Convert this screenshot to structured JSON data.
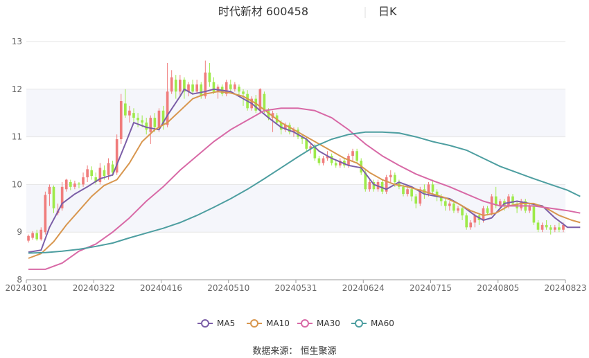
{
  "chart_data": {
    "type": "candlestick",
    "title": "时代新材 600458",
    "period": "日K",
    "ylim": [
      8,
      13
    ],
    "yticks": [
      8,
      9,
      10,
      11,
      12,
      13
    ],
    "xticks": [
      "20240301",
      "20240322",
      "20240416",
      "20240510",
      "20240531",
      "20240624",
      "20240715",
      "20240805",
      "20240823"
    ],
    "colors": {
      "up": "#f07c7c",
      "down": "#9eea4a",
      "ma5": "#7b5ea7",
      "ma10": "#d8964e",
      "ma30": "#d869a6",
      "ma60": "#4d9ea0"
    },
    "candles": [
      [
        8.82,
        8.92,
        8.95,
        8.78
      ],
      [
        8.88,
        8.98,
        9.02,
        8.84
      ],
      [
        8.98,
        8.85,
        9.05,
        8.82
      ],
      [
        8.85,
        9.05,
        9.1,
        8.82
      ],
      [
        9.0,
        9.78,
        9.85,
        8.95
      ],
      [
        9.8,
        9.95,
        10.0,
        9.55
      ],
      [
        9.95,
        9.5,
        9.98,
        9.4
      ],
      [
        9.4,
        9.45,
        9.6,
        9.35
      ],
      [
        9.5,
        9.95,
        10.05,
        9.45
      ],
      [
        9.9,
        10.1,
        10.12,
        9.85
      ],
      [
        10.05,
        9.95,
        10.1,
        9.88
      ],
      [
        9.95,
        10.02,
        10.08,
        9.9
      ],
      [
        10.02,
        10.0,
        10.05,
        9.92
      ],
      [
        10.0,
        10.15,
        10.25,
        9.95
      ],
      [
        10.15,
        10.32,
        10.4,
        10.05
      ],
      [
        10.3,
        10.18,
        10.38,
        10.1
      ],
      [
        10.15,
        10.05,
        10.25,
        10.0
      ],
      [
        10.05,
        10.35,
        10.45,
        10.0
      ],
      [
        10.3,
        10.18,
        10.4,
        10.1
      ],
      [
        10.2,
        10.45,
        10.55,
        10.1
      ],
      [
        10.42,
        10.25,
        10.5,
        10.18
      ],
      [
        10.25,
        10.95,
        11.05,
        10.2
      ],
      [
        10.95,
        11.75,
        11.9,
        10.85
      ],
      [
        11.7,
        11.45,
        12.0,
        11.4
      ],
      [
        11.45,
        11.55,
        11.65,
        11.3
      ],
      [
        11.5,
        11.4,
        11.6,
        11.3
      ],
      [
        11.4,
        11.35,
        11.5,
        11.2
      ],
      [
        11.35,
        11.3,
        11.45,
        11.2
      ],
      [
        11.3,
        11.15,
        11.4,
        11.05
      ],
      [
        11.1,
        11.4,
        11.45,
        10.85
      ],
      [
        11.4,
        11.2,
        11.5,
        11.1
      ],
      [
        11.2,
        11.55,
        11.6,
        11.1
      ],
      [
        11.55,
        11.25,
        11.65,
        11.15
      ],
      [
        11.25,
        11.95,
        12.55,
        11.2
      ],
      [
        11.95,
        12.25,
        12.4,
        11.9
      ],
      [
        12.2,
        11.95,
        12.3,
        11.8
      ],
      [
        11.95,
        12.2,
        12.3,
        11.85
      ],
      [
        12.2,
        11.95,
        12.25,
        11.8
      ],
      [
        11.95,
        12.1,
        12.15,
        11.85
      ],
      [
        12.1,
        11.95,
        12.2,
        11.9
      ],
      [
        11.95,
        12.1,
        12.2,
        11.9
      ],
      [
        12.1,
        11.85,
        12.15,
        11.8
      ],
      [
        11.85,
        12.35,
        12.6,
        11.8
      ],
      [
        12.35,
        12.15,
        12.55,
        12.05
      ],
      [
        12.15,
        11.95,
        12.25,
        11.9
      ],
      [
        11.95,
        12.05,
        12.1,
        11.8
      ],
      [
        12.05,
        11.9,
        12.1,
        11.85
      ],
      [
        11.9,
        12.15,
        12.2,
        11.85
      ],
      [
        12.1,
        12.0,
        12.2,
        11.95
      ],
      [
        12.0,
        12.1,
        12.15,
        11.95
      ],
      [
        12.05,
        11.95,
        12.1,
        11.85
      ],
      [
        11.95,
        11.9,
        12.0,
        11.65
      ],
      [
        11.9,
        11.6,
        11.98,
        11.55
      ],
      [
        11.6,
        11.8,
        11.85,
        11.55
      ],
      [
        11.8,
        11.55,
        11.88,
        11.5
      ],
      [
        11.55,
        12.0,
        12.02,
        11.5
      ],
      [
        11.9,
        11.55,
        11.95,
        11.5
      ],
      [
        11.55,
        11.4,
        11.6,
        11.35
      ],
      [
        11.4,
        11.5,
        11.55,
        11.1
      ],
      [
        11.45,
        11.3,
        11.5,
        11.25
      ],
      [
        11.3,
        11.15,
        11.35,
        11.05
      ],
      [
        11.15,
        11.25,
        11.3,
        11.1
      ],
      [
        11.25,
        11.1,
        11.3,
        11.05
      ],
      [
        11.1,
        11.15,
        11.2,
        11.0
      ],
      [
        11.15,
        11.0,
        11.2,
        10.95
      ],
      [
        11.0,
        10.95,
        11.05,
        10.85
      ],
      [
        10.95,
        10.75,
        11.0,
        10.7
      ],
      [
        10.75,
        10.8,
        10.85,
        10.65
      ],
      [
        10.8,
        10.55,
        10.85,
        10.5
      ],
      [
        10.55,
        10.45,
        10.6,
        10.4
      ],
      [
        10.45,
        10.55,
        10.6,
        10.4
      ],
      [
        10.55,
        10.6,
        10.7,
        10.5
      ],
      [
        10.6,
        10.45,
        10.65,
        10.4
      ],
      [
        10.45,
        10.4,
        10.5,
        10.35
      ],
      [
        10.4,
        10.5,
        10.55,
        10.35
      ],
      [
        10.5,
        10.4,
        10.55,
        10.35
      ],
      [
        10.4,
        10.6,
        10.65,
        10.35
      ],
      [
        10.6,
        10.7,
        10.75,
        10.5
      ],
      [
        10.7,
        10.5,
        10.75,
        10.45
      ],
      [
        10.5,
        10.25,
        10.55,
        10.2
      ],
      [
        10.25,
        9.9,
        10.3,
        9.85
      ],
      [
        9.9,
        10.05,
        10.1,
        9.85
      ],
      [
        10.05,
        9.9,
        10.1,
        9.85
      ],
      [
        9.9,
        10.05,
        10.1,
        9.85
      ],
      [
        10.05,
        9.85,
        10.1,
        9.8
      ],
      [
        9.85,
        10.15,
        10.2,
        9.8
      ],
      [
        10.15,
        10.2,
        10.3,
        10.05
      ],
      [
        10.2,
        10.05,
        10.25,
        9.95
      ],
      [
        10.05,
        9.95,
        10.1,
        9.9
      ],
      [
        9.95,
        9.8,
        10.0,
        9.75
      ],
      [
        9.8,
        9.9,
        9.95,
        9.75
      ],
      [
        9.9,
        9.75,
        9.95,
        9.65
      ],
      [
        9.75,
        9.6,
        9.8,
        9.5
      ],
      [
        9.6,
        9.9,
        9.95,
        9.55
      ],
      [
        9.9,
        9.8,
        10.0,
        9.7
      ],
      [
        9.8,
        10.0,
        10.05,
        9.75
      ],
      [
        10.0,
        9.85,
        10.1,
        9.8
      ],
      [
        9.85,
        9.75,
        9.9,
        9.65
      ],
      [
        9.75,
        9.65,
        9.8,
        9.55
      ],
      [
        9.65,
        9.55,
        9.7,
        9.45
      ],
      [
        9.55,
        9.6,
        9.65,
        9.45
      ],
      [
        9.6,
        9.45,
        9.65,
        9.4
      ],
      [
        9.45,
        9.5,
        9.55,
        9.4
      ],
      [
        9.5,
        9.35,
        9.55,
        9.25
      ],
      [
        9.35,
        9.1,
        9.4,
        9.05
      ],
      [
        9.1,
        9.2,
        9.25,
        9.05
      ],
      [
        9.2,
        9.35,
        9.4,
        9.1
      ],
      [
        9.35,
        9.25,
        9.4,
        9.15
      ],
      [
        9.25,
        9.5,
        9.55,
        9.2
      ],
      [
        9.5,
        9.4,
        9.55,
        9.35
      ],
      [
        9.4,
        9.75,
        9.8,
        9.35
      ],
      [
        9.75,
        9.55,
        9.95,
        9.5
      ],
      [
        9.55,
        9.65,
        9.7,
        9.5
      ],
      [
        9.65,
        9.55,
        9.7,
        9.45
      ],
      [
        9.55,
        9.75,
        9.8,
        9.5
      ],
      [
        9.75,
        9.6,
        9.8,
        9.55
      ],
      [
        9.6,
        9.5,
        9.65,
        9.4
      ],
      [
        9.5,
        9.65,
        9.7,
        9.45
      ],
      [
        9.65,
        9.45,
        9.7,
        9.4
      ],
      [
        9.45,
        9.55,
        9.6,
        9.4
      ],
      [
        9.55,
        9.2,
        9.6,
        9.15
      ],
      [
        9.2,
        9.05,
        9.25,
        9.0
      ],
      [
        9.05,
        9.15,
        9.2,
        9.0
      ],
      [
        9.15,
        9.1,
        9.25,
        9.05
      ],
      [
        9.1,
        9.05,
        9.15,
        8.95
      ],
      [
        9.05,
        9.1,
        9.15,
        9.0
      ],
      [
        9.1,
        9.05,
        9.2,
        9.0
      ],
      [
        9.05,
        9.15,
        9.2,
        9.0
      ]
    ],
    "series": [
      {
        "name": "MA5",
        "color": "#7b5ea7",
        "values": [
          [
            0,
            8.58
          ],
          [
            3,
            8.62
          ],
          [
            5,
            9.1
          ],
          [
            8,
            9.6
          ],
          [
            11,
            9.8
          ],
          [
            14,
            9.95
          ],
          [
            17,
            10.12
          ],
          [
            20,
            10.2
          ],
          [
            23,
            10.85
          ],
          [
            25,
            11.3
          ],
          [
            28,
            11.2
          ],
          [
            31,
            11.15
          ],
          [
            33,
            11.45
          ],
          [
            36,
            11.85
          ],
          [
            37,
            12.0
          ],
          [
            39,
            11.9
          ],
          [
            42,
            11.95
          ],
          [
            44,
            12.0
          ],
          [
            48,
            11.95
          ],
          [
            50,
            11.85
          ],
          [
            53,
            11.7
          ],
          [
            57,
            11.4
          ],
          [
            60,
            11.2
          ],
          [
            63,
            11.1
          ],
          [
            66,
            10.95
          ],
          [
            69,
            10.7
          ],
          [
            72,
            10.55
          ],
          [
            76,
            10.4
          ],
          [
            79,
            10.35
          ],
          [
            82,
            10.0
          ],
          [
            85,
            9.9
          ],
          [
            88,
            10.05
          ],
          [
            91,
            9.95
          ],
          [
            94,
            9.8
          ],
          [
            97,
            9.75
          ],
          [
            100,
            9.7
          ],
          [
            103,
            9.55
          ],
          [
            106,
            9.35
          ],
          [
            108,
            9.25
          ],
          [
            110,
            9.3
          ],
          [
            113,
            9.6
          ],
          [
            116,
            9.65
          ],
          [
            119,
            9.6
          ],
          [
            122,
            9.55
          ],
          [
            125,
            9.3
          ],
          [
            128,
            9.1
          ],
          [
            131,
            9.1
          ]
        ]
      },
      {
        "name": "MA10",
        "color": "#d8964e",
        "values": [
          [
            0,
            8.45
          ],
          [
            3,
            8.55
          ],
          [
            6,
            8.8
          ],
          [
            9,
            9.15
          ],
          [
            12,
            9.45
          ],
          [
            15,
            9.75
          ],
          [
            18,
            9.98
          ],
          [
            21,
            10.1
          ],
          [
            24,
            10.45
          ],
          [
            27,
            10.9
          ],
          [
            30,
            11.15
          ],
          [
            33,
            11.3
          ],
          [
            36,
            11.55
          ],
          [
            39,
            11.8
          ],
          [
            42,
            11.9
          ],
          [
            45,
            11.95
          ],
          [
            48,
            11.92
          ],
          [
            51,
            11.85
          ],
          [
            54,
            11.7
          ],
          [
            57,
            11.5
          ],
          [
            60,
            11.3
          ],
          [
            63,
            11.15
          ],
          [
            66,
            11.0
          ],
          [
            69,
            10.85
          ],
          [
            72,
            10.7
          ],
          [
            75,
            10.55
          ],
          [
            78,
            10.45
          ],
          [
            81,
            10.25
          ],
          [
            84,
            10.1
          ],
          [
            87,
            10.0
          ],
          [
            90,
            9.95
          ],
          [
            93,
            9.88
          ],
          [
            96,
            9.8
          ],
          [
            99,
            9.72
          ],
          [
            102,
            9.6
          ],
          [
            105,
            9.45
          ],
          [
            108,
            9.35
          ],
          [
            111,
            9.4
          ],
          [
            114,
            9.55
          ],
          [
            117,
            9.6
          ],
          [
            120,
            9.6
          ],
          [
            123,
            9.5
          ],
          [
            126,
            9.35
          ],
          [
            129,
            9.25
          ],
          [
            131,
            9.2
          ]
        ]
      },
      {
        "name": "MA30",
        "color": "#d869a6",
        "values": [
          [
            0,
            8.22
          ],
          [
            4,
            8.22
          ],
          [
            8,
            8.35
          ],
          [
            12,
            8.6
          ],
          [
            16,
            8.75
          ],
          [
            20,
            9.0
          ],
          [
            24,
            9.3
          ],
          [
            28,
            9.65
          ],
          [
            32,
            9.95
          ],
          [
            36,
            10.3
          ],
          [
            40,
            10.6
          ],
          [
            44,
            10.9
          ],
          [
            48,
            11.15
          ],
          [
            52,
            11.35
          ],
          [
            56,
            11.55
          ],
          [
            60,
            11.6
          ],
          [
            64,
            11.6
          ],
          [
            68,
            11.55
          ],
          [
            72,
            11.4
          ],
          [
            76,
            11.15
          ],
          [
            80,
            10.85
          ],
          [
            84,
            10.6
          ],
          [
            88,
            10.4
          ],
          [
            92,
            10.22
          ],
          [
            96,
            10.08
          ],
          [
            100,
            9.95
          ],
          [
            104,
            9.8
          ],
          [
            108,
            9.65
          ],
          [
            112,
            9.55
          ],
          [
            116,
            9.55
          ],
          [
            120,
            9.55
          ],
          [
            124,
            9.5
          ],
          [
            128,
            9.45
          ],
          [
            131,
            9.4
          ]
        ]
      },
      {
        "name": "MA60",
        "color": "#4d9ea0",
        "values": [
          [
            0,
            8.56
          ],
          [
            4,
            8.57
          ],
          [
            8,
            8.6
          ],
          [
            12,
            8.64
          ],
          [
            16,
            8.7
          ],
          [
            20,
            8.77
          ],
          [
            24,
            8.88
          ],
          [
            28,
            8.98
          ],
          [
            32,
            9.08
          ],
          [
            36,
            9.2
          ],
          [
            40,
            9.35
          ],
          [
            44,
            9.52
          ],
          [
            48,
            9.7
          ],
          [
            52,
            9.9
          ],
          [
            56,
            10.12
          ],
          [
            60,
            10.35
          ],
          [
            64,
            10.58
          ],
          [
            68,
            10.8
          ],
          [
            72,
            10.95
          ],
          [
            76,
            11.05
          ],
          [
            80,
            11.1
          ],
          [
            84,
            11.1
          ],
          [
            88,
            11.08
          ],
          [
            92,
            11.0
          ],
          [
            96,
            10.9
          ],
          [
            100,
            10.82
          ],
          [
            104,
            10.72
          ],
          [
            108,
            10.55
          ],
          [
            112,
            10.38
          ],
          [
            116,
            10.25
          ],
          [
            120,
            10.12
          ],
          [
            124,
            10.0
          ],
          [
            128,
            9.88
          ],
          [
            131,
            9.75
          ]
        ]
      }
    ],
    "legend": [
      "MA5",
      "MA10",
      "MA30",
      "MA60"
    ],
    "source": "数据来源：  恒生聚源"
  }
}
